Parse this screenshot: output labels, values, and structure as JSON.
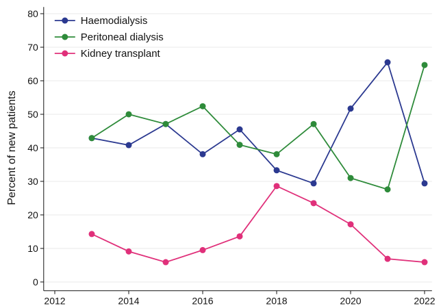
{
  "chart_data": {
    "type": "line",
    "y_label": "Percent of new patients",
    "x": [
      2013,
      2014,
      2015,
      2016,
      2017,
      2018,
      2019,
      2020,
      2021,
      2022
    ],
    "series": [
      {
        "name": "Haemodialysis",
        "color": "#2b3990",
        "values": [
          42.9,
          40.8,
          47.1,
          38.1,
          45.5,
          33.3,
          29.4,
          51.7,
          65.5,
          29.4
        ]
      },
      {
        "name": "Peritoneal dialysis",
        "color": "#2e8b3a",
        "values": [
          42.9,
          50.0,
          47.1,
          52.4,
          40.9,
          38.1,
          47.1,
          31.0,
          27.6,
          64.7
        ]
      },
      {
        "name": "Kidney transplant",
        "color": "#e0307a",
        "values": [
          14.3,
          9.1,
          5.9,
          9.5,
          13.6,
          28.6,
          23.5,
          17.2,
          6.9,
          5.9
        ]
      }
    ],
    "xlim": [
      2011.7,
      2022.2
    ],
    "xticks": [
      2012,
      2014,
      2016,
      2018,
      2020,
      2022
    ],
    "ylim": [
      -2.6,
      82
    ],
    "yticks": [
      0,
      10,
      20,
      30,
      40,
      50,
      60,
      70,
      80
    ],
    "grid": true,
    "legend": "top-left"
  }
}
